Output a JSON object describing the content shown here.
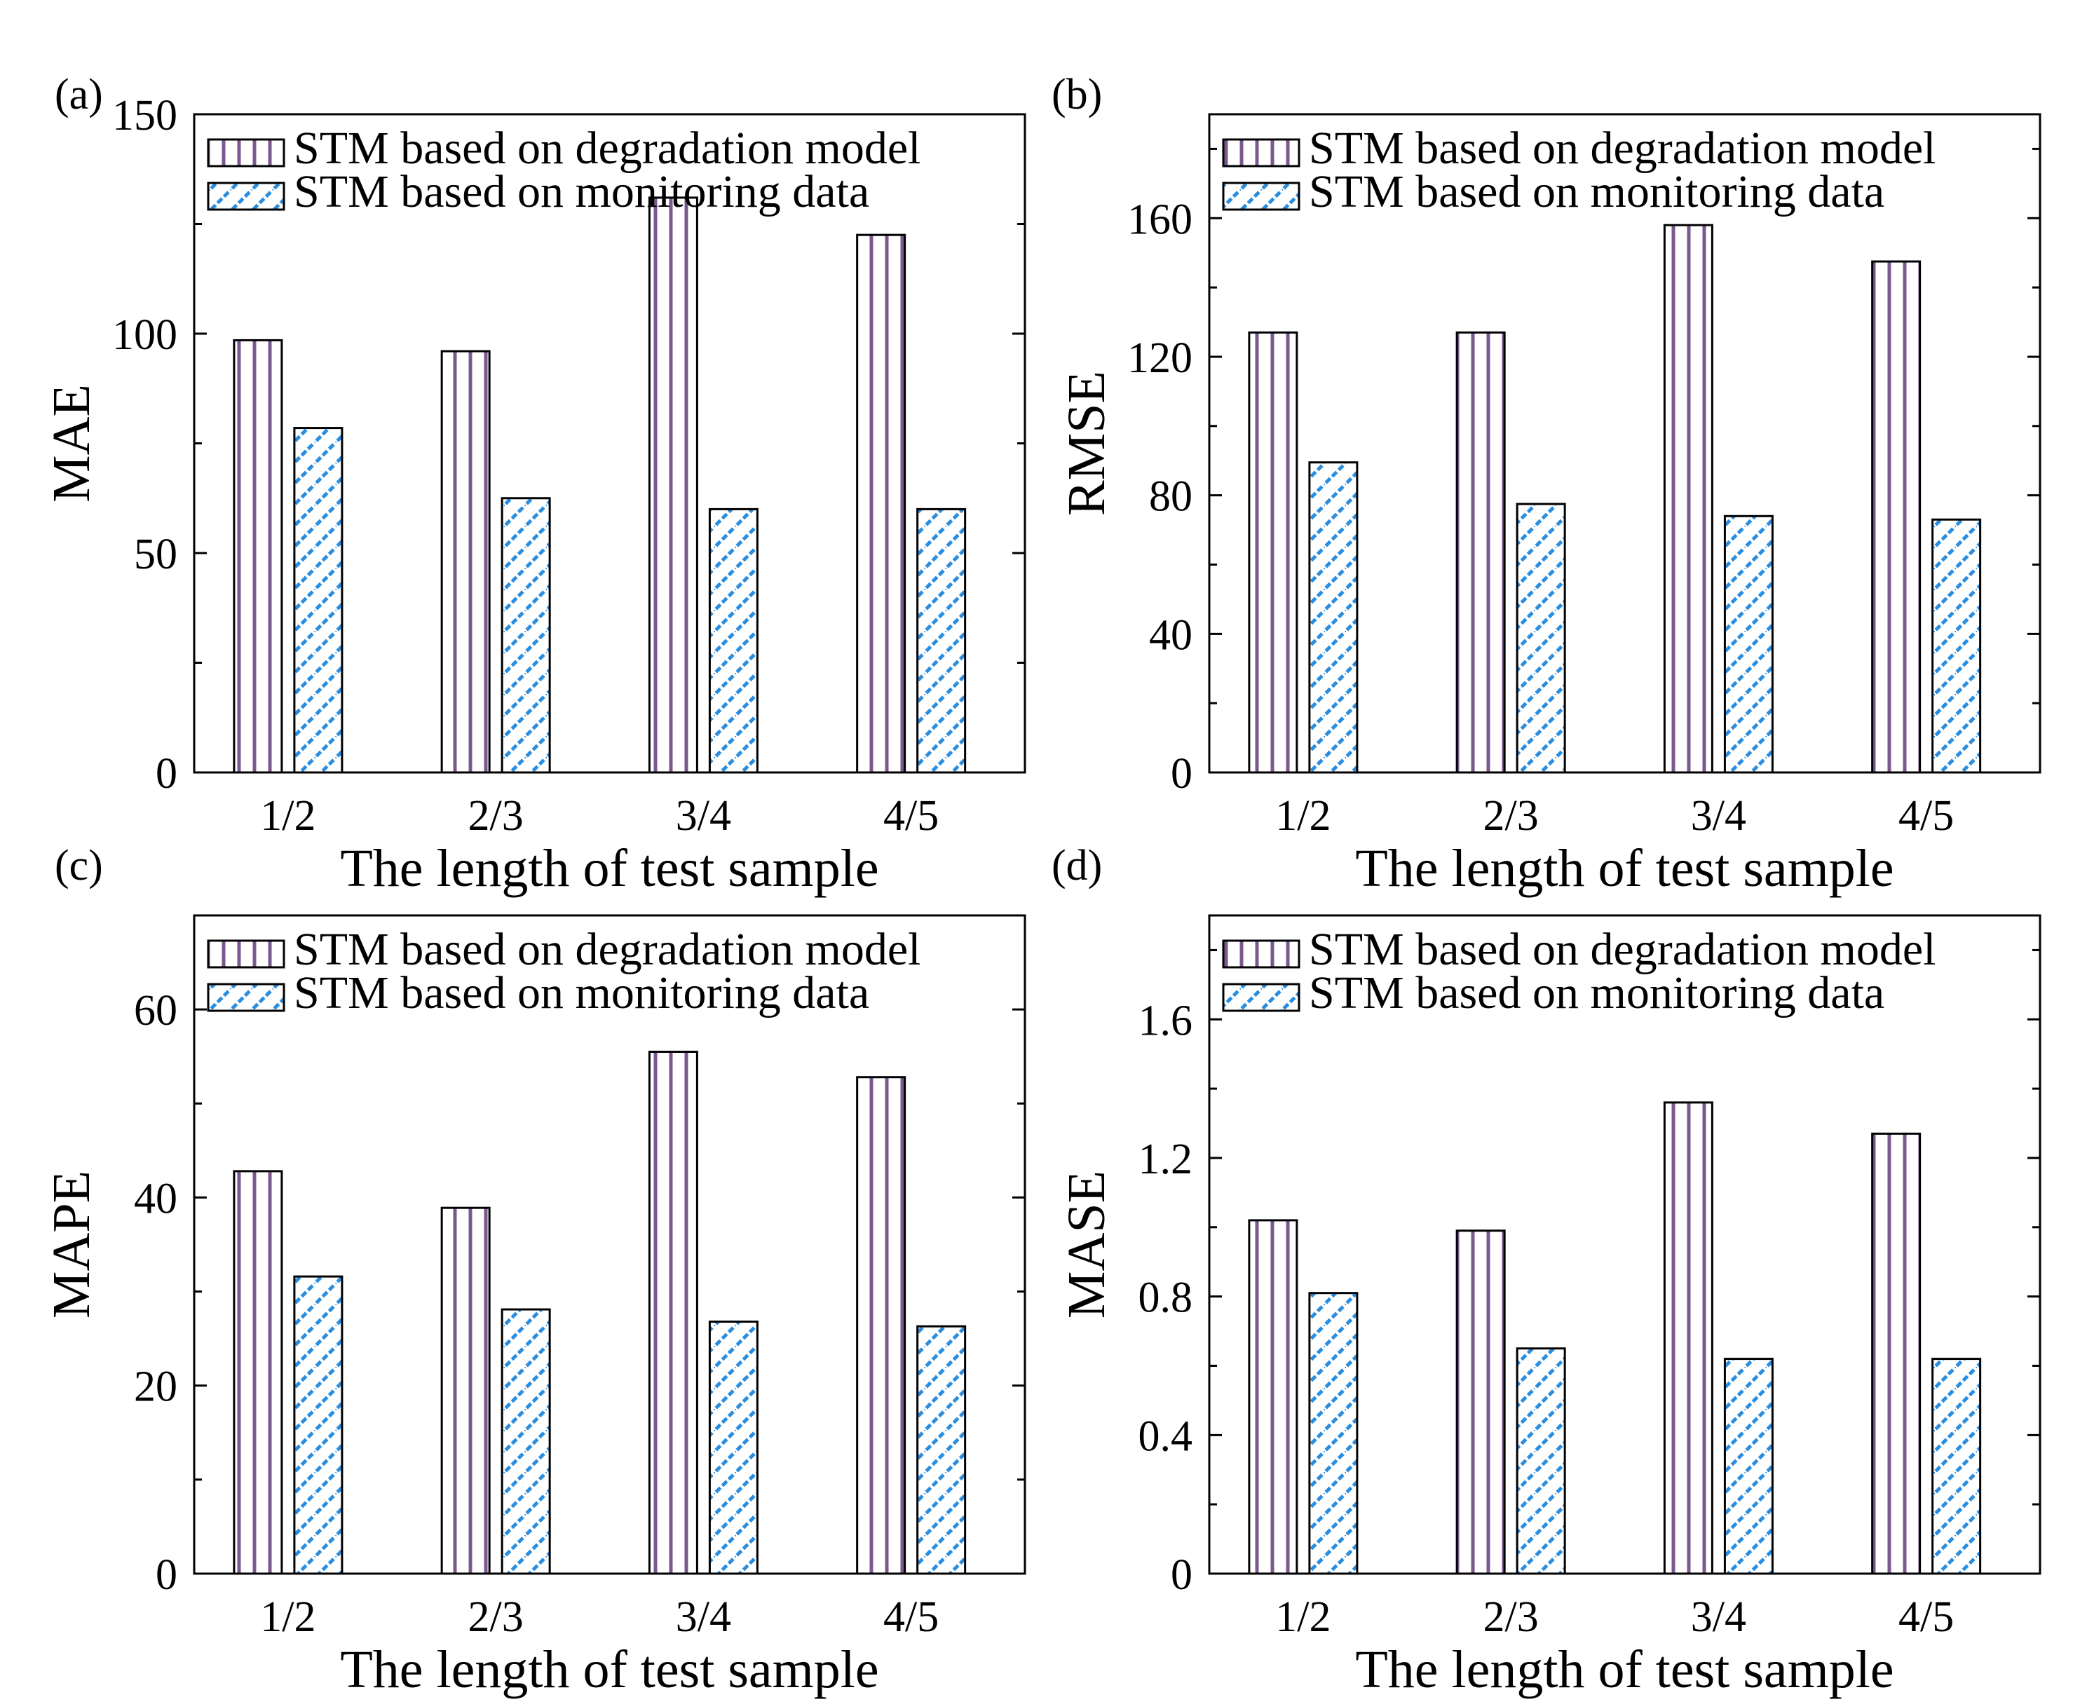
{
  "figure": {
    "x_categories": [
      "1/2",
      "2/3",
      "3/4",
      "4/5"
    ],
    "legend": [
      "STM based on degradation model",
      "STM based on monitoring data"
    ],
    "colors": {
      "degradation_stripe": "#7a5a8e",
      "monitoring_stripe": "#2a8ee0",
      "frame": "#000000",
      "background": "#ffffff"
    }
  },
  "chart_data": [
    {
      "panel_label": "(a)",
      "type": "bar",
      "categories": [
        "1/2",
        "2/3",
        "3/4",
        "4/5"
      ],
      "series": [
        {
          "name": "STM based on degradation model",
          "values": [
            98.5,
            96,
            131,
            122.5
          ]
        },
        {
          "name": "STM based on monitoring data",
          "values": [
            78.5,
            62.5,
            60,
            60
          ]
        }
      ],
      "xlabel": "The length of test sample",
      "ylabel": "MAE",
      "ylim": [
        0,
        150
      ],
      "yticks": [
        0,
        50,
        100,
        150
      ],
      "ytick_labels": [
        "0",
        "50",
        "100",
        "150"
      ],
      "legend_position": "top"
    },
    {
      "panel_label": "(b)",
      "type": "bar",
      "categories": [
        "1/2",
        "2/3",
        "3/4",
        "4/5"
      ],
      "series": [
        {
          "name": "STM based on degradation model",
          "values": [
            127,
            127,
            158,
            147.5
          ]
        },
        {
          "name": "STM based on monitoring data",
          "values": [
            89.5,
            77.5,
            74,
            73
          ]
        }
      ],
      "xlabel": "The length of test sample",
      "ylabel": "RMSE",
      "ylim": [
        0,
        190
      ],
      "yticks": [
        0,
        40,
        80,
        120,
        160
      ],
      "ytick_labels": [
        "0",
        "40",
        "80",
        "120",
        "160"
      ],
      "legend_position": "top"
    },
    {
      "panel_label": "(c)",
      "type": "bar",
      "categories": [
        "1/2",
        "2/3",
        "3/4",
        "4/5"
      ],
      "series": [
        {
          "name": "STM based on degradation model",
          "values": [
            42.8,
            38.9,
            55.5,
            52.8
          ]
        },
        {
          "name": "STM based on monitoring data",
          "values": [
            31.6,
            28.1,
            26.8,
            26.3
          ]
        }
      ],
      "xlabel": "The length of test sample",
      "ylabel": "MAPE",
      "ylim": [
        0,
        70
      ],
      "yticks": [
        0,
        20,
        40,
        60
      ],
      "ytick_labels": [
        "0",
        "20",
        "40",
        "60"
      ],
      "legend_position": "top"
    },
    {
      "panel_label": "(d)",
      "type": "bar",
      "categories": [
        "1/2",
        "2/3",
        "3/4",
        "4/5"
      ],
      "series": [
        {
          "name": "STM based on degradation model",
          "values": [
            1.02,
            0.99,
            1.36,
            1.27
          ]
        },
        {
          "name": "STM based on monitoring data",
          "values": [
            0.81,
            0.65,
            0.62,
            0.62
          ]
        }
      ],
      "xlabel": "The length of test sample",
      "ylabel": "MASE",
      "ylim": [
        0,
        1.9
      ],
      "yticks": [
        0,
        0.4,
        0.8,
        1.2,
        1.6
      ],
      "ytick_labels": [
        "0",
        "0.4",
        "0.8",
        "1.2",
        "1.6"
      ],
      "legend_position": "top"
    }
  ]
}
